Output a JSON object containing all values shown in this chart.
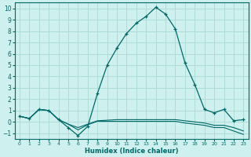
{
  "x": [
    0,
    1,
    2,
    3,
    4,
    5,
    6,
    7,
    8,
    9,
    10,
    11,
    12,
    13,
    14,
    15,
    16,
    17,
    18,
    19,
    20,
    21,
    22,
    23
  ],
  "y_main": [
    0.5,
    0.3,
    1.1,
    1.0,
    0.2,
    -0.5,
    -1.2,
    -0.4,
    2.5,
    5.0,
    6.5,
    7.8,
    8.7,
    9.3,
    10.1,
    9.5,
    8.2,
    5.2,
    3.3,
    1.1,
    0.8,
    1.1,
    0.1,
    0.2
  ],
  "y_line2": [
    0.5,
    0.3,
    1.1,
    1.0,
    0.2,
    -0.2,
    -0.5,
    -0.2,
    0.1,
    0.15,
    0.2,
    0.2,
    0.2,
    0.2,
    0.2,
    0.2,
    0.2,
    0.1,
    0.0,
    -0.1,
    -0.3,
    -0.3,
    -0.5,
    -0.8
  ],
  "y_line3": [
    0.5,
    0.3,
    1.1,
    1.0,
    0.2,
    -0.2,
    -0.7,
    -0.25,
    0.05,
    0.05,
    0.05,
    0.05,
    0.05,
    0.05,
    0.05,
    0.05,
    0.05,
    -0.1,
    -0.2,
    -0.3,
    -0.5,
    -0.5,
    -0.8,
    -1.1
  ],
  "color_main": "#006868",
  "bg_color": "#cef0ee",
  "grid_color": "#b0dcd8",
  "xlabel": "Humidex (Indice chaleur)",
  "ylim": [
    -1.5,
    10.5
  ],
  "xlim": [
    -0.5,
    23.5
  ],
  "yticks": [
    -1,
    0,
    1,
    2,
    3,
    4,
    5,
    6,
    7,
    8,
    9,
    10
  ],
  "xticks": [
    0,
    1,
    2,
    3,
    4,
    5,
    6,
    7,
    8,
    9,
    10,
    11,
    12,
    13,
    14,
    15,
    16,
    17,
    18,
    19,
    20,
    21,
    22,
    23
  ]
}
